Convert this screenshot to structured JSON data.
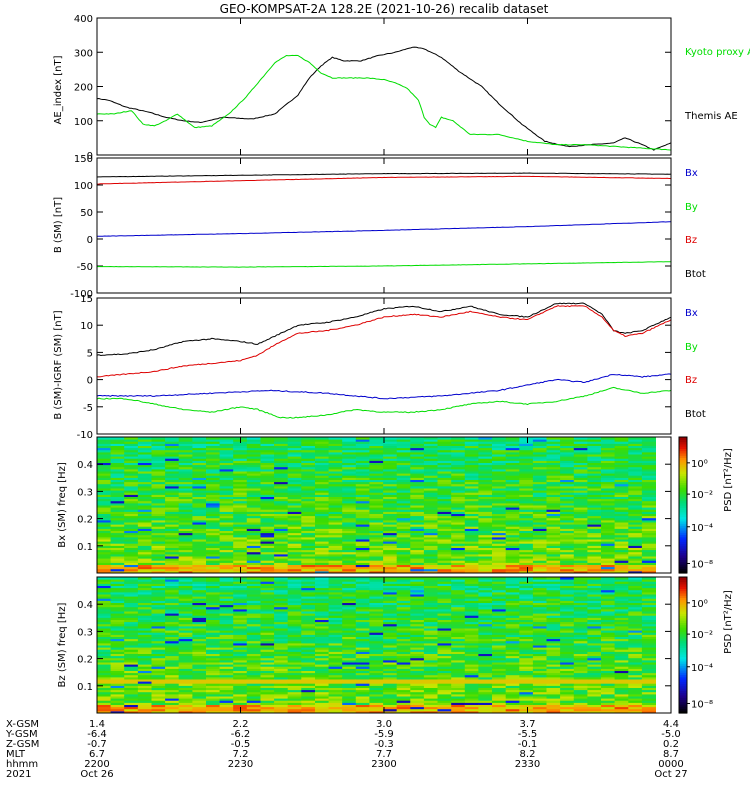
{
  "title": "GEO-KOMPSAT-2A 128.2E (2021-10-26) recalib dataset",
  "colors": {
    "black": "#000000",
    "green": "#00dd00",
    "blue": "#0000cc",
    "red": "#dd0000"
  },
  "chart_data": [
    {
      "type": "line",
      "ylabel": "AE_index [nT]",
      "ylim": [
        0,
        400
      ],
      "yticks": [
        0,
        100,
        200,
        300,
        400
      ],
      "x_range": [
        "2021-10-26 22:00",
        "2021-10-27 00:00"
      ],
      "legend": [
        "Kyoto proxy AE",
        "Themis AE"
      ],
      "series": [
        {
          "name": "Themis AE",
          "color": "#000000",
          "x": [
            0,
            0.02,
            0.05,
            0.09,
            0.12,
            0.15,
            0.18,
            0.22,
            0.27,
            0.31,
            0.35,
            0.37,
            0.39,
            0.41,
            0.43,
            0.46,
            0.49,
            0.52,
            0.55,
            0.57,
            0.6,
            0.63,
            0.67,
            0.7,
            0.74,
            0.78,
            0.82,
            0.86,
            0.9,
            0.92,
            0.95,
            0.97,
            1.0
          ],
          "values": [
            165,
            160,
            140,
            125,
            110,
            100,
            95,
            110,
            105,
            120,
            175,
            225,
            260,
            285,
            275,
            275,
            290,
            300,
            315,
            310,
            285,
            245,
            200,
            150,
            90,
            40,
            25,
            30,
            35,
            50,
            30,
            15,
            35
          ]
        },
        {
          "name": "Kyoto proxy AE",
          "color": "#00dd00",
          "x": [
            0,
            0.03,
            0.06,
            0.08,
            0.1,
            0.12,
            0.14,
            0.17,
            0.2,
            0.23,
            0.26,
            0.29,
            0.31,
            0.33,
            0.35,
            0.37,
            0.39,
            0.41,
            0.43,
            0.45,
            0.47,
            0.5,
            0.52,
            0.54,
            0.56,
            0.57,
            0.58,
            0.59,
            0.6,
            0.62,
            0.65,
            0.67,
            0.7,
            0.75,
            0.8,
            0.85,
            0.9,
            0.95,
            1.0
          ],
          "values": [
            120,
            120,
            130,
            90,
            85,
            100,
            120,
            80,
            85,
            120,
            170,
            230,
            270,
            290,
            290,
            270,
            240,
            225,
            225,
            225,
            225,
            220,
            210,
            195,
            160,
            110,
            90,
            80,
            110,
            100,
            60,
            60,
            60,
            40,
            30,
            30,
            25,
            20,
            15
          ]
        }
      ]
    },
    {
      "type": "line",
      "ylabel": "B (SM) [nT]",
      "ylim": [
        -100,
        150
      ],
      "yticks": [
        -100,
        -50,
        0,
        50,
        100,
        150
      ],
      "legend": [
        "Bx",
        "By",
        "Bz",
        "Btot"
      ],
      "series": [
        {
          "name": "Btot",
          "color": "#000000",
          "x": [
            0,
            0.25,
            0.5,
            0.75,
            1.0
          ],
          "values": [
            115,
            118,
            121,
            122,
            120
          ]
        },
        {
          "name": "Bz",
          "color": "#dd0000",
          "x": [
            0,
            0.25,
            0.5,
            0.75,
            1.0
          ],
          "values": [
            102,
            108,
            114,
            116,
            112
          ]
        },
        {
          "name": "Bx",
          "color": "#0000cc",
          "x": [
            0,
            0.25,
            0.5,
            0.75,
            1.0
          ],
          "values": [
            5,
            10,
            16,
            23,
            32
          ]
        },
        {
          "name": "By",
          "color": "#00dd00",
          "x": [
            0,
            0.25,
            0.5,
            0.75,
            1.0
          ],
          "values": [
            -51,
            -52,
            -50,
            -46,
            -42
          ]
        }
      ]
    },
    {
      "type": "line",
      "ylabel": "B (SM)-IGRF (SM) [nT]",
      "ylim": [
        -10,
        15
      ],
      "yticks": [
        -10,
        -5,
        0,
        5,
        10,
        15
      ],
      "legend": [
        "Bx",
        "By",
        "Bz",
        "Btot"
      ],
      "series": [
        {
          "name": "Btot",
          "color": "#000000",
          "x": [
            0,
            0.05,
            0.1,
            0.15,
            0.2,
            0.25,
            0.28,
            0.32,
            0.35,
            0.4,
            0.45,
            0.5,
            0.55,
            0.6,
            0.65,
            0.7,
            0.75,
            0.8,
            0.85,
            0.88,
            0.9,
            0.92,
            0.95,
            1.0
          ],
          "values": [
            4.5,
            4.7,
            5.5,
            7,
            7.5,
            7,
            6.5,
            8.5,
            10,
            10.5,
            11.5,
            13,
            13.5,
            12.5,
            13.5,
            12,
            11.5,
            14,
            14,
            12,
            9,
            8.5,
            9,
            11.5
          ]
        },
        {
          "name": "Bz",
          "color": "#dd0000",
          "x": [
            0,
            0.05,
            0.1,
            0.15,
            0.2,
            0.25,
            0.28,
            0.32,
            0.35,
            0.4,
            0.45,
            0.5,
            0.55,
            0.6,
            0.65,
            0.7,
            0.75,
            0.8,
            0.85,
            0.88,
            0.9,
            0.92,
            0.95,
            1.0
          ],
          "values": [
            0.5,
            1,
            1.5,
            2.5,
            3,
            3.5,
            4.5,
            7,
            8.5,
            9,
            10,
            11.5,
            12,
            11.5,
            12.5,
            11.5,
            11,
            13.5,
            13.5,
            11.5,
            9,
            8,
            8.5,
            11
          ]
        },
        {
          "name": "Bx",
          "color": "#0000cc",
          "x": [
            0,
            0.1,
            0.2,
            0.3,
            0.4,
            0.5,
            0.6,
            0.7,
            0.8,
            0.85,
            0.9,
            0.95,
            1.0
          ],
          "values": [
            -3,
            -3,
            -2.5,
            -2,
            -2.5,
            -3.5,
            -3,
            -2,
            0,
            -0.5,
            1,
            0.5,
            1
          ]
        },
        {
          "name": "By",
          "color": "#00dd00",
          "x": [
            0,
            0.05,
            0.1,
            0.15,
            0.2,
            0.25,
            0.28,
            0.32,
            0.35,
            0.4,
            0.45,
            0.5,
            0.55,
            0.6,
            0.65,
            0.7,
            0.75,
            0.8,
            0.85,
            0.9,
            0.95,
            1.0
          ],
          "values": [
            -3.5,
            -3.5,
            -4.5,
            -5.5,
            -6,
            -5,
            -5.5,
            -7,
            -7,
            -6.5,
            -5.5,
            -6,
            -6,
            -5.5,
            -4.5,
            -4,
            -4.5,
            -4,
            -3,
            -1.5,
            -2.5,
            -2
          ]
        }
      ]
    },
    {
      "type": "heatmap",
      "ylabel": "Bx (SM) freq [Hz]",
      "ylim": [
        0,
        0.5
      ],
      "yticks": [
        "0.1",
        "0.2",
        "0.3",
        "0.4"
      ],
      "colorbar_label": "PSD [nT²/Hz]",
      "colorbar_ticks": [
        "10⁰",
        "10⁻²",
        "10⁻⁴",
        "10⁻⁸"
      ]
    },
    {
      "type": "heatmap",
      "ylabel": "Bz (SM) freq [Hz]",
      "ylim": [
        0,
        0.5
      ],
      "yticks": [
        "0.1",
        "0.2",
        "0.3",
        "0.4"
      ],
      "colorbar_label": "PSD [nT²/Hz]",
      "colorbar_ticks": [
        "10⁰",
        "10⁻²",
        "10⁻⁴",
        "10⁻⁸"
      ]
    }
  ],
  "ephemeris": {
    "row_labels": [
      "X-GSM",
      "Y-GSM",
      "Z-GSM",
      "MLT",
      "hhmm",
      "2021"
    ],
    "columns": [
      [
        "1.4",
        "-6.4",
        "-0.7",
        "6.7",
        "2200",
        "Oct 26"
      ],
      [
        "2.2",
        "-6.2",
        "-0.5",
        "7.2",
        "2230",
        ""
      ],
      [
        "3.0",
        "-5.9",
        "-0.3",
        "7.7",
        "2300",
        ""
      ],
      [
        "3.7",
        "-5.5",
        "-0.1",
        "8.2",
        "2330",
        ""
      ],
      [
        "4.4",
        "-5.0",
        "0.2",
        "8.7",
        "0000",
        "Oct 27"
      ]
    ]
  }
}
